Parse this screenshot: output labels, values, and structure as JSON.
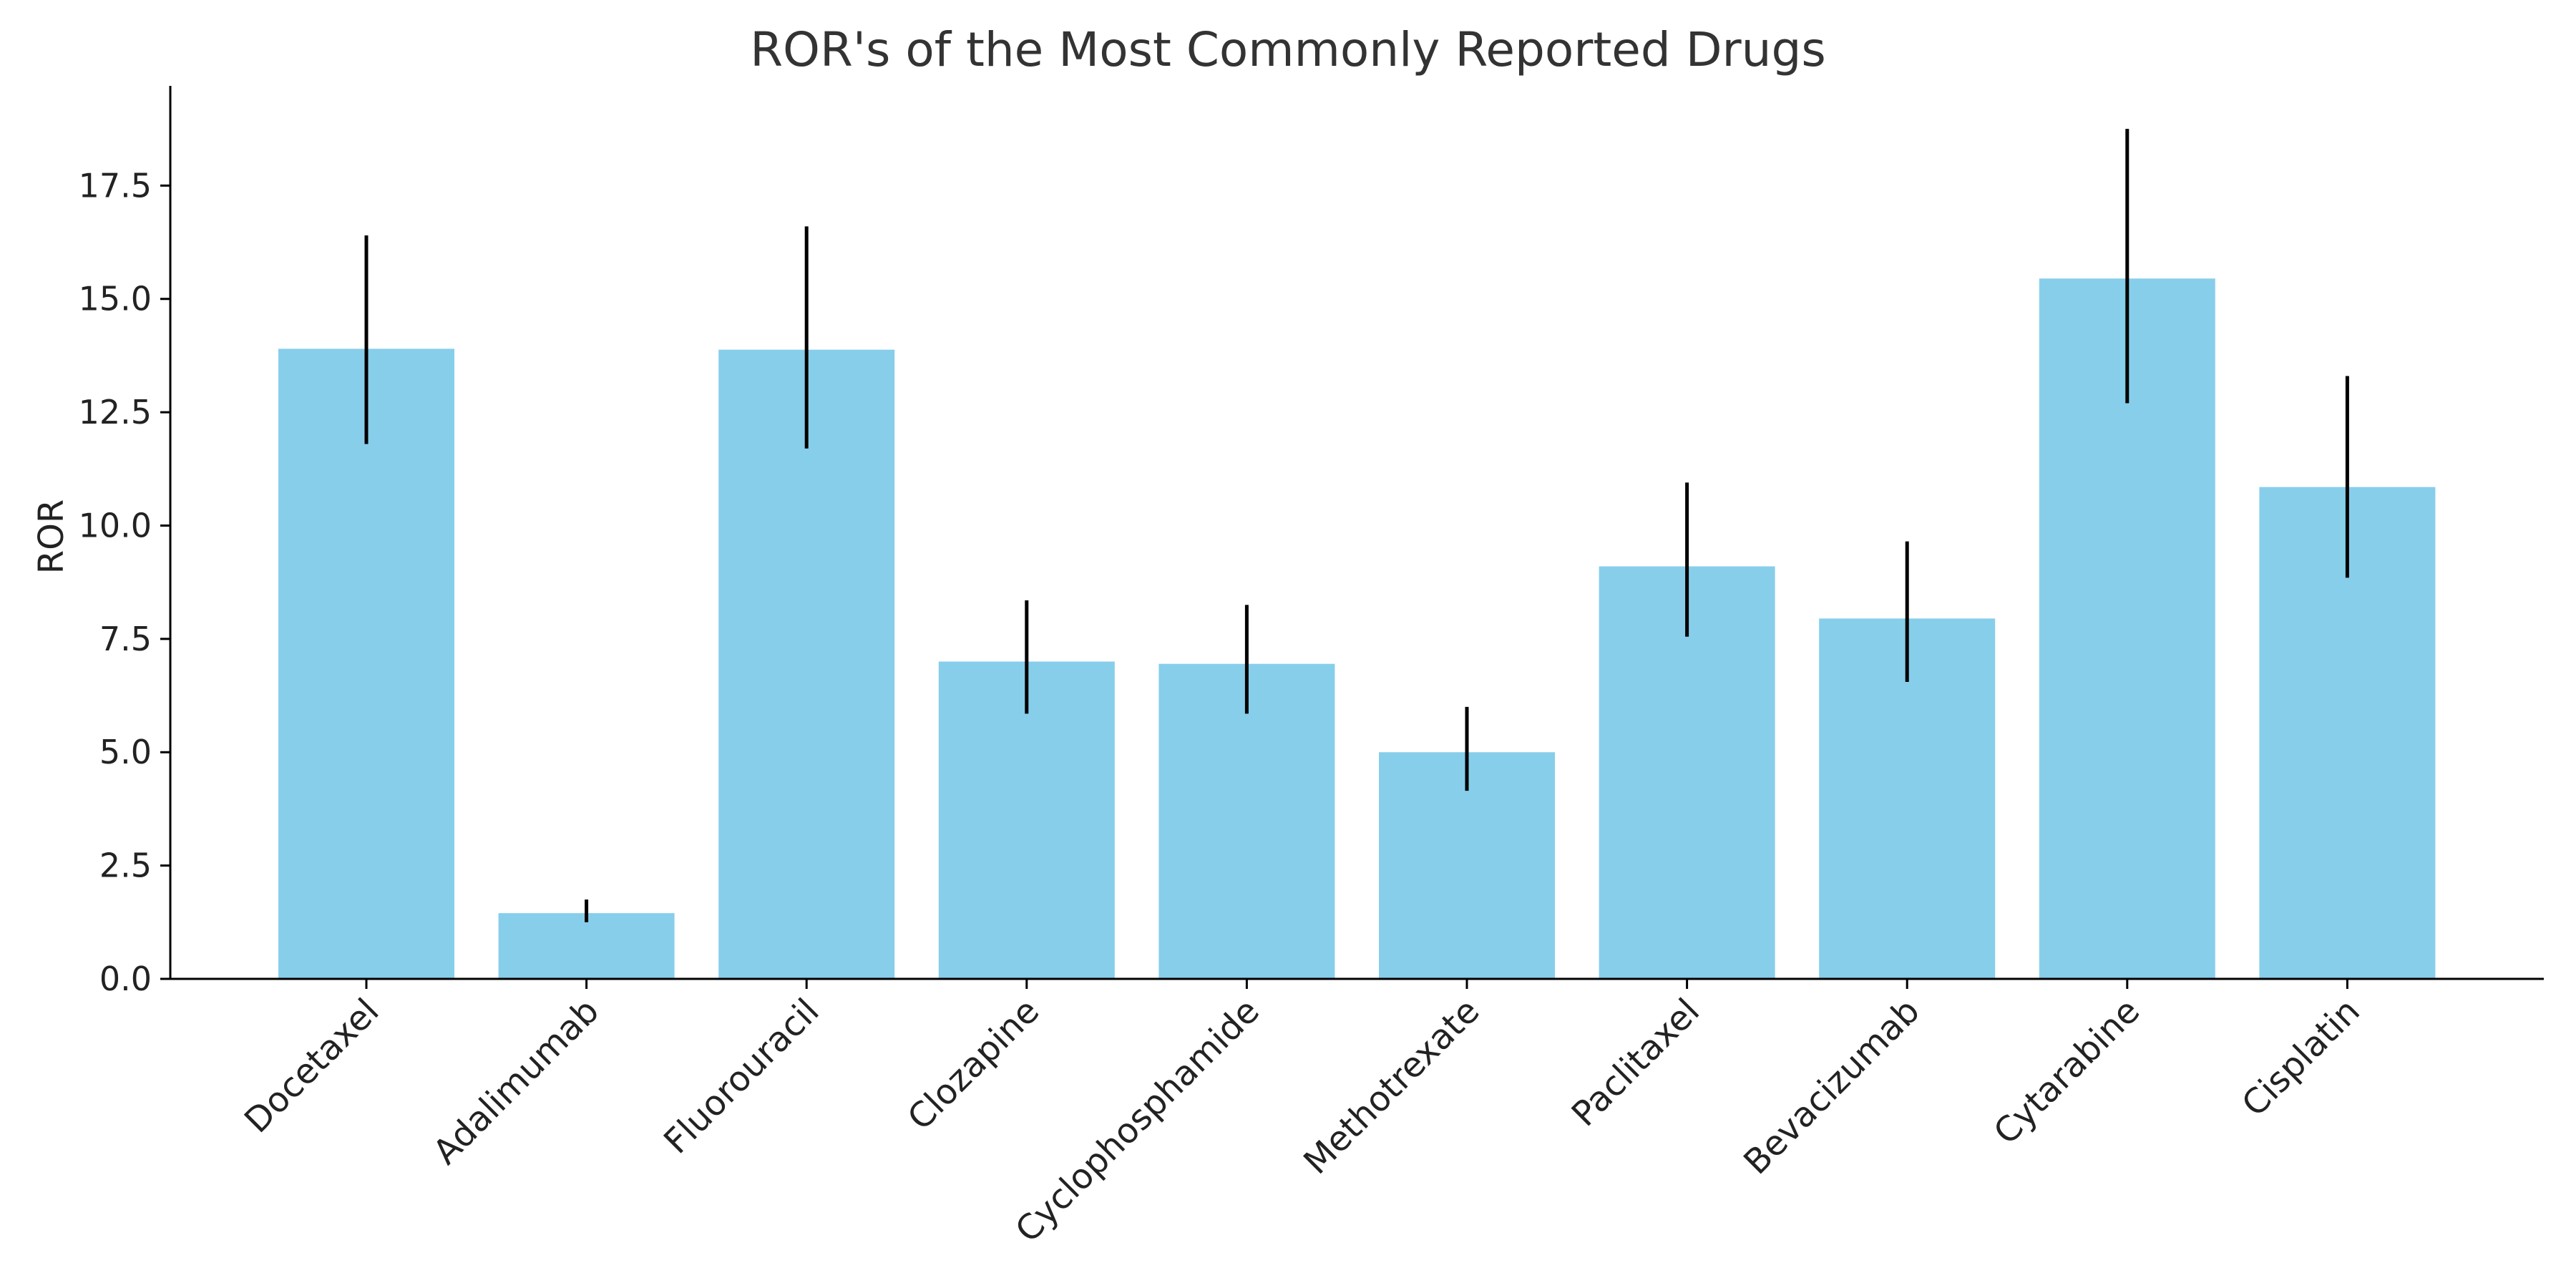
{
  "chart_data": {
    "type": "bar",
    "title": "ROR's of the Most Commonly Reported Drugs",
    "xlabel": "",
    "ylabel": "ROR",
    "ylim": [
      0,
      19.7
    ],
    "yticks": [
      "0.0",
      "2.5",
      "5.0",
      "7.5",
      "10.0",
      "12.5",
      "15.0",
      "17.5"
    ],
    "categories": [
      "Docetaxel",
      "Adalimumab",
      "Fluorouracil",
      "Clozapine",
      "Cyclophosphamide",
      "Methotrexate",
      "Paclitaxel",
      "Bevacizumab",
      "Cytarabine",
      "Cisplatin"
    ],
    "values": [
      13.9,
      1.45,
      13.88,
      7.0,
      6.95,
      5.0,
      9.1,
      7.95,
      15.45,
      10.85
    ],
    "error_low": [
      11.8,
      1.25,
      11.7,
      5.85,
      5.85,
      4.15,
      7.55,
      6.55,
      12.7,
      8.85
    ],
    "error_high": [
      16.4,
      1.75,
      16.6,
      8.35,
      8.25,
      6.0,
      10.95,
      9.65,
      18.75,
      13.3
    ],
    "grid": false,
    "bar_color": "#87CEEB",
    "error_color": "#000000"
  }
}
